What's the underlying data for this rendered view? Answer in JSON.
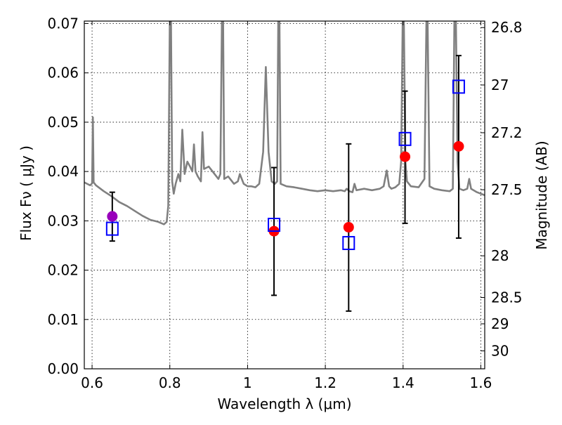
{
  "chart_data": {
    "type": "scatter",
    "xlabel": "Wavelength  λ (μm)",
    "ylabel": "Flux  Fν  ( μJy )",
    "ylabel_right": "Magnitude (AB)",
    "xlim": [
      0.58,
      1.61
    ],
    "ylim": [
      0.0,
      0.0705
    ],
    "grid": true,
    "xticks": [
      {
        "value": 0.6,
        "label": "0.6"
      },
      {
        "value": 0.8,
        "label": "0.8"
      },
      {
        "value": 1.0,
        "label": "1"
      },
      {
        "value": 1.2,
        "label": "1.2"
      },
      {
        "value": 1.4,
        "label": "1.4"
      },
      {
        "value": 1.6,
        "label": "1.6"
      }
    ],
    "yticks": [
      {
        "value": 0.0,
        "label": "0.00"
      },
      {
        "value": 0.01,
        "label": "0.01"
      },
      {
        "value": 0.02,
        "label": "0.02"
      },
      {
        "value": 0.03,
        "label": "0.03"
      },
      {
        "value": 0.04,
        "label": "0.04"
      },
      {
        "value": 0.05,
        "label": "0.05"
      },
      {
        "value": 0.06,
        "label": "0.06"
      },
      {
        "value": 0.07,
        "label": "0.07"
      }
    ],
    "right_ticks": [
      {
        "mag": 26.8,
        "label": "26.8"
      },
      {
        "mag": 27.0,
        "label": "27"
      },
      {
        "mag": 27.2,
        "label": "27.2"
      },
      {
        "mag": 27.5,
        "label": "27.5"
      },
      {
        "mag": 28.0,
        "label": "28"
      },
      {
        "mag": 28.5,
        "label": "28.5"
      },
      {
        "mag": 29.0,
        "label": "29"
      },
      {
        "mag": 30.0,
        "label": "30"
      }
    ],
    "series": [
      {
        "name": "model SED",
        "kind": "line",
        "color": "#808080",
        "points": [
          [
            0.58,
            0.0378
          ],
          [
            0.595,
            0.0372
          ],
          [
            0.6,
            0.0376
          ],
          [
            0.602,
            0.051
          ],
          [
            0.604,
            0.0378
          ],
          [
            0.61,
            0.0372
          ],
          [
            0.63,
            0.036
          ],
          [
            0.65,
            0.035
          ],
          [
            0.67,
            0.0338
          ],
          [
            0.69,
            0.033
          ],
          [
            0.71,
            0.032
          ],
          [
            0.73,
            0.031
          ],
          [
            0.75,
            0.0302
          ],
          [
            0.77,
            0.0298
          ],
          [
            0.785,
            0.0293
          ],
          [
            0.792,
            0.0298
          ],
          [
            0.796,
            0.033
          ],
          [
            0.8,
            0.0705
          ],
          [
            0.803,
            0.0705
          ],
          [
            0.806,
            0.038
          ],
          [
            0.81,
            0.0355
          ],
          [
            0.815,
            0.0375
          ],
          [
            0.822,
            0.0395
          ],
          [
            0.827,
            0.038
          ],
          [
            0.832,
            0.0485
          ],
          [
            0.838,
            0.0395
          ],
          [
            0.845,
            0.042
          ],
          [
            0.852,
            0.041
          ],
          [
            0.858,
            0.04
          ],
          [
            0.862,
            0.0455
          ],
          [
            0.866,
            0.04
          ],
          [
            0.872,
            0.039
          ],
          [
            0.88,
            0.038
          ],
          [
            0.884,
            0.048
          ],
          [
            0.888,
            0.0405
          ],
          [
            0.9,
            0.041
          ],
          [
            0.915,
            0.0395
          ],
          [
            0.925,
            0.0385
          ],
          [
            0.93,
            0.0395
          ],
          [
            0.934,
            0.0705
          ],
          [
            0.937,
            0.0705
          ],
          [
            0.94,
            0.0385
          ],
          [
            0.95,
            0.039
          ],
          [
            0.965,
            0.0375
          ],
          [
            0.975,
            0.038
          ],
          [
            0.98,
            0.0395
          ],
          [
            0.99,
            0.0375
          ],
          [
            1.0,
            0.037
          ],
          [
            1.01,
            0.037
          ],
          [
            1.02,
            0.0368
          ],
          [
            1.03,
            0.0375
          ],
          [
            1.04,
            0.044
          ],
          [
            1.047,
            0.0612
          ],
          [
            1.054,
            0.044
          ],
          [
            1.062,
            0.038
          ],
          [
            1.07,
            0.0375
          ],
          [
            1.076,
            0.038
          ],
          [
            1.079,
            0.0705
          ],
          [
            1.082,
            0.0705
          ],
          [
            1.085,
            0.0375
          ],
          [
            1.1,
            0.037
          ],
          [
            1.12,
            0.0368
          ],
          [
            1.14,
            0.0365
          ],
          [
            1.16,
            0.0362
          ],
          [
            1.18,
            0.036
          ],
          [
            1.2,
            0.0362
          ],
          [
            1.22,
            0.036
          ],
          [
            1.24,
            0.0362
          ],
          [
            1.25,
            0.036
          ],
          [
            1.255,
            0.0365
          ],
          [
            1.262,
            0.036
          ],
          [
            1.27,
            0.0358
          ],
          [
            1.275,
            0.0375
          ],
          [
            1.28,
            0.0362
          ],
          [
            1.3,
            0.0365
          ],
          [
            1.32,
            0.0362
          ],
          [
            1.34,
            0.0365
          ],
          [
            1.35,
            0.037
          ],
          [
            1.358,
            0.0402
          ],
          [
            1.364,
            0.037
          ],
          [
            1.37,
            0.0365
          ],
          [
            1.38,
            0.0368
          ],
          [
            1.39,
            0.0375
          ],
          [
            1.395,
            0.042
          ],
          [
            1.399,
            0.0705
          ],
          [
            1.402,
            0.0705
          ],
          [
            1.406,
            0.042
          ],
          [
            1.41,
            0.038
          ],
          [
            1.42,
            0.037
          ],
          [
            1.44,
            0.0368
          ],
          [
            1.455,
            0.0385
          ],
          [
            1.46,
            0.0705
          ],
          [
            1.463,
            0.0705
          ],
          [
            1.468,
            0.037
          ],
          [
            1.48,
            0.0365
          ],
          [
            1.5,
            0.0362
          ],
          [
            1.52,
            0.036
          ],
          [
            1.528,
            0.0365
          ],
          [
            1.532,
            0.0705
          ],
          [
            1.536,
            0.0705
          ],
          [
            1.54,
            0.042
          ],
          [
            1.545,
            0.0365
          ],
          [
            1.555,
            0.0362
          ],
          [
            1.565,
            0.0365
          ],
          [
            1.57,
            0.0385
          ],
          [
            1.575,
            0.0365
          ],
          [
            1.59,
            0.0358
          ],
          [
            1.61,
            0.0352
          ]
        ]
      },
      {
        "name": "observed flux",
        "kind": "errorbar",
        "color": "#000000",
        "points": [
          {
            "x": 0.652,
            "y": 0.0309,
            "lo": 0.0259,
            "hi": 0.0358
          },
          {
            "x": 1.068,
            "y": 0.0279,
            "lo": 0.0149,
            "hi": 0.0408
          },
          {
            "x": 1.26,
            "y": 0.0287,
            "lo": 0.0117,
            "hi": 0.0456
          },
          {
            "x": 1.405,
            "y": 0.043,
            "lo": 0.0295,
            "hi": 0.0563
          },
          {
            "x": 1.543,
            "y": 0.0451,
            "lo": 0.0265,
            "hi": 0.0635
          }
        ]
      },
      {
        "name": "observed (red circles)",
        "kind": "marker-circle",
        "color": "#ff0000",
        "points": [
          {
            "x": 1.068,
            "y": 0.0279
          },
          {
            "x": 1.26,
            "y": 0.0287
          },
          {
            "x": 1.405,
            "y": 0.043
          },
          {
            "x": 1.543,
            "y": 0.0451
          }
        ]
      },
      {
        "name": "observed (magenta circle)",
        "kind": "marker-circle",
        "color": "#9900bb",
        "points": [
          {
            "x": 0.652,
            "y": 0.0309
          }
        ]
      },
      {
        "name": "model bandpass flux",
        "kind": "marker-square",
        "color": "#0000ff",
        "points": [
          {
            "x": 0.652,
            "y": 0.0284
          },
          {
            "x": 1.068,
            "y": 0.0292
          },
          {
            "x": 1.26,
            "y": 0.0255
          },
          {
            "x": 1.405,
            "y": 0.0466
          },
          {
            "x": 1.543,
            "y": 0.0572
          }
        ]
      }
    ]
  }
}
